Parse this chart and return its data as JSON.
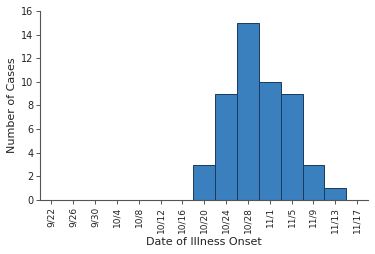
{
  "categories": [
    "9/22",
    "9/26",
    "9/30",
    "10/4",
    "10/8",
    "10/12",
    "10/16",
    "10/20",
    "10/24",
    "10/28",
    "11/1",
    "11/5",
    "11/9",
    "11/13",
    "11/17"
  ],
  "bar_positions": [
    7,
    8,
    9,
    10,
    11,
    12,
    13
  ],
  "bar_labels": [
    "10/20",
    "10/24",
    "10/28",
    "11/1",
    "11/5",
    "11/9",
    "11/13"
  ],
  "bar_values": [
    3,
    9,
    15,
    10,
    9,
    3,
    1
  ],
  "bar_color": "#3a7fbe",
  "bar_edge_color": "#1a3a5c",
  "xlabel": "Date of Illness Onset",
  "ylabel": "Number of Cases",
  "ylim": [
    0,
    16
  ],
  "yticks": [
    0,
    2,
    4,
    6,
    8,
    10,
    12,
    14,
    16
  ],
  "background_color": "#ffffff",
  "tick_label_fontsize": 6.5,
  "axis_label_fontsize": 8.0
}
